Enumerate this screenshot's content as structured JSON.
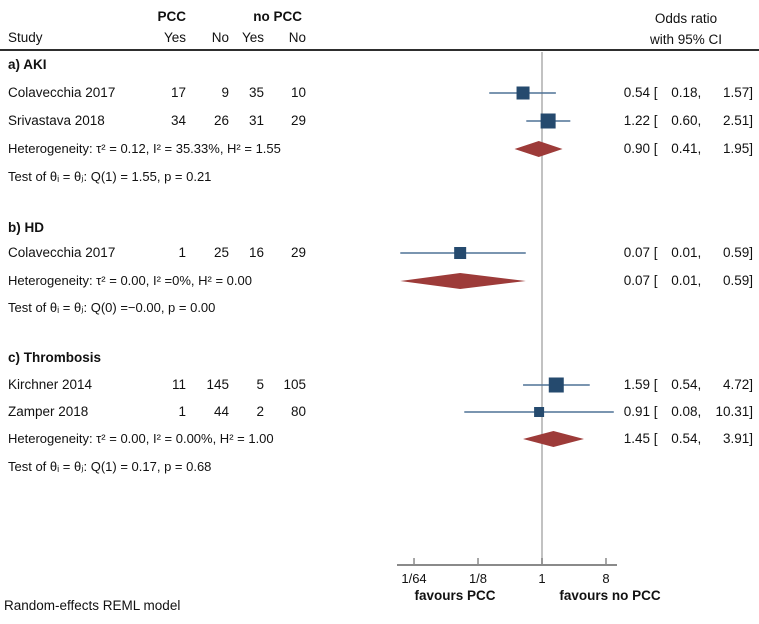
{
  "header": {
    "group1": "PCC",
    "group2": "no PCC",
    "study": "Study",
    "col_yes": "Yes",
    "col_no": "No",
    "or_title_1": "Odds ratio",
    "or_title_2": "with 95% CI"
  },
  "footer": "Random-effects REML model",
  "chart_data": {
    "type": "forest",
    "effect_measure": "Odds ratio",
    "x_axis": {
      "scale": "log2",
      "ref_value": 1,
      "ticks": [
        {
          "label": "1/64",
          "value": 0.015625
        },
        {
          "label": "1/8",
          "value": 0.125
        },
        {
          "label": "1",
          "value": 1
        },
        {
          "label": "8",
          "value": 8
        }
      ],
      "left_label": "favours PCC",
      "right_label": "favours no PCC"
    },
    "sections": [
      {
        "label": "a) AKI",
        "studies": [
          {
            "name": "Colavecchia 2017",
            "pcc_yes": "17",
            "pcc_no": "9",
            "nopcc_yes": "35",
            "nopcc_no": "10",
            "est": "0.54",
            "lo": "0.18",
            "hi": "1.57",
            "marker_size": 13
          },
          {
            "name": "Srivastava 2018",
            "pcc_yes": "34",
            "pcc_no": "26",
            "nopcc_yes": "31",
            "nopcc_no": "29",
            "est": "1.22",
            "lo": "0.60",
            "hi": "2.51",
            "marker_size": 15
          }
        ],
        "heterogeneity": "Heterogeneity: τ² = 0.12, I² = 35.33%, H² = 1.55",
        "test": "Test of θᵢ = θⱼ: Q(1) = 1.55, p = 0.21",
        "summary": {
          "est": "0.90",
          "lo": "0.41",
          "hi": "1.95"
        }
      },
      {
        "label": "b) HD",
        "studies": [
          {
            "name": "Colavecchia 2017",
            "pcc_yes": "1",
            "pcc_no": "25",
            "nopcc_yes": "16",
            "nopcc_no": "29",
            "est": "0.07",
            "lo": "0.01",
            "hi": "0.59",
            "marker_size": 12
          }
        ],
        "heterogeneity": "Heterogeneity: τ² = 0.00, I² =0%, H² = 0.00",
        "test": "Test of θᵢ = θⱼ: Q(0) =−0.00, p = 0.00",
        "summary": {
          "est": "0.07",
          "lo": "0.01",
          "hi": "0.59"
        }
      },
      {
        "label": "c) Thrombosis",
        "studies": [
          {
            "name": "Kirchner 2014",
            "pcc_yes": "11",
            "pcc_no": "145",
            "nopcc_yes": "5",
            "nopcc_no": "105",
            "est": "1.59",
            "lo": "0.54",
            "hi": "4.72",
            "marker_size": 15
          },
          {
            "name": "Zamper 2018",
            "pcc_yes": "1",
            "pcc_no": "44",
            "nopcc_yes": "2",
            "nopcc_no": "80",
            "est": "0.91",
            "lo": "0.08",
            "hi": "10.31",
            "marker_size": 10
          }
        ],
        "heterogeneity": "Heterogeneity: τ² = 0.00, I² = 0.00%, H² = 1.00",
        "test": "Test of θᵢ = θⱼ: Q(1) = 0.17, p = 0.68",
        "summary": {
          "est": "1.45",
          "lo": "0.54",
          "hi": "3.91"
        }
      }
    ],
    "colors": {
      "marker": "#254a6e",
      "ci_line": "#4f7296",
      "diamond": "#9d3b39",
      "ref_line": "#c2c2c2",
      "axis": "#8a8a8a",
      "header_rule": "#2e2e2e"
    }
  }
}
